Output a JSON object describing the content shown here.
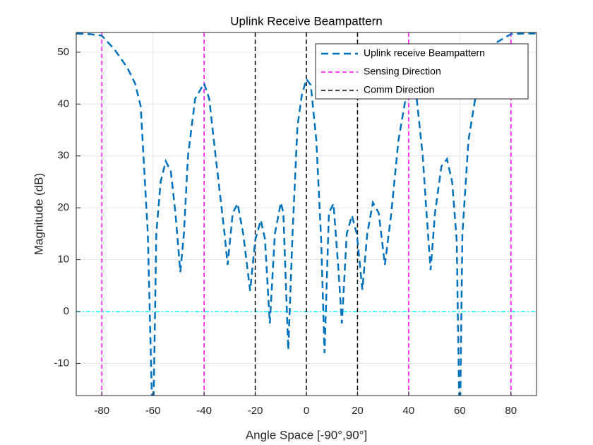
{
  "chart_data": {
    "type": "line",
    "title": "Uplink Receive Beampattern",
    "x_label": "Angle Space [-90°,90°]",
    "y_label": "Magnitude (dB)",
    "xlim": [
      -90,
      90
    ],
    "ylim": [
      -16.2,
      53.8
    ],
    "xticks": [
      -80,
      -60,
      -40,
      -20,
      0,
      20,
      40,
      60,
      80
    ],
    "yticks": [
      -10,
      0,
      10,
      20,
      30,
      40,
      50
    ],
    "grid": true,
    "legend": "upper right",
    "series": [
      {
        "name": "Uplink receive Beampattern",
        "color": "#0072BD",
        "x": [
          -90,
          -85,
          -80,
          -75,
          -70,
          -67,
          -64.8,
          -62,
          -60,
          -58.7,
          -57,
          -55,
          -53,
          -51.2,
          -49.3,
          -47.9,
          -46.3,
          -43.5,
          -40,
          -38,
          -35.5,
          -32,
          -30.8,
          -28.8,
          -26.9,
          -24.7,
          -22,
          -20,
          -17.8,
          -16.2,
          -14.3,
          -12.3,
          -10,
          -9,
          -7.1,
          -5.4,
          -3.5,
          -1.8,
          0,
          1.7,
          3.9,
          5.8,
          7.1,
          8.8,
          10.6,
          12.5,
          13.9,
          15.8,
          17.8,
          19.7,
          21.9,
          23.8,
          26,
          28.3,
          30.7,
          33.2,
          36,
          38.8,
          40,
          43,
          45.5,
          47,
          48.6,
          50.3,
          52.8,
          55,
          57,
          58.8,
          60,
          61,
          63.4,
          66,
          70.5,
          74.8,
          80,
          85,
          90
        ],
        "values": [
          53.6,
          53.5,
          53.2,
          50.5,
          47,
          44,
          39.6,
          15,
          -25,
          15,
          25,
          29,
          27,
          19,
          7.6,
          15,
          30,
          41,
          44,
          41,
          30,
          15,
          9,
          19,
          20.8,
          15,
          4,
          13.8,
          17.6,
          14,
          -2.3,
          15,
          21,
          19,
          -7.4,
          15,
          35.6,
          41.7,
          44.8,
          43.7,
          33,
          13.6,
          -8,
          19,
          20.8,
          8.3,
          -2.3,
          15,
          18.5,
          15,
          4.2,
          15,
          21,
          19,
          9,
          19,
          33,
          41,
          43,
          41.7,
          30,
          19,
          8,
          19,
          28,
          29.4,
          25,
          13.6,
          -25,
          15,
          33,
          41,
          47.8,
          52,
          53.5,
          53.6,
          53.6
        ]
      },
      {
        "name": "Sensing Direction",
        "color": "#FF00FF",
        "x": [
          -80,
          -40,
          40,
          80
        ]
      },
      {
        "name": "Comm Direction",
        "color": "#000000",
        "x": [
          -20,
          0,
          20
        ]
      }
    ],
    "hline": {
      "value": 0,
      "color": "#00FFFF"
    }
  }
}
